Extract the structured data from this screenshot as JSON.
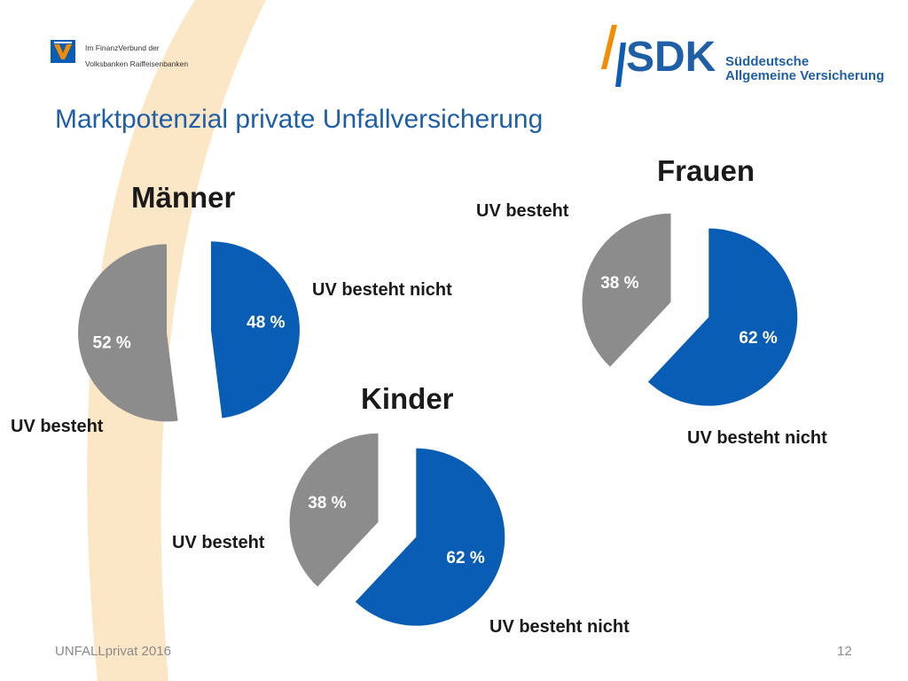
{
  "header": {
    "bank_line1": "Im FinanzVerbund der",
    "bank_line2": "Volksbanken Raiffeisenbanken",
    "sdk_name": "SDK",
    "sdk_line1": "Süddeutsche",
    "sdk_line2": "Allgemeine Versicherung"
  },
  "page_title": "Marktpotenzial private Unfallversicherung",
  "footer": {
    "left": "UNFALLprivat 2016",
    "page_number": "12"
  },
  "colors": {
    "blue": "#0a5db5",
    "gray": "#8c8c8c",
    "title_blue": "#1f5fa8",
    "swoosh": "#fbe7c6"
  },
  "chart_data": [
    {
      "type": "pie",
      "title": "Männer",
      "slices": [
        {
          "label": "UV besteht nicht",
          "value": 48,
          "value_label": "48 %",
          "color": "#0a5db5"
        },
        {
          "label": "UV besteht",
          "value": 52,
          "value_label": "52 %",
          "color": "#8c8c8c"
        }
      ]
    },
    {
      "type": "pie",
      "title": "Frauen",
      "slices": [
        {
          "label": "UV besteht nicht",
          "value": 62,
          "value_label": "62 %",
          "color": "#0a5db5"
        },
        {
          "label": "UV besteht",
          "value": 38,
          "value_label": "38 %",
          "color": "#8c8c8c"
        }
      ]
    },
    {
      "type": "pie",
      "title": "Kinder",
      "slices": [
        {
          "label": "UV besteht nicht",
          "value": 62,
          "value_label": "62 %",
          "color": "#0a5db5"
        },
        {
          "label": "UV besteht",
          "value": 38,
          "value_label": "38 %",
          "color": "#8c8c8c"
        }
      ]
    }
  ]
}
